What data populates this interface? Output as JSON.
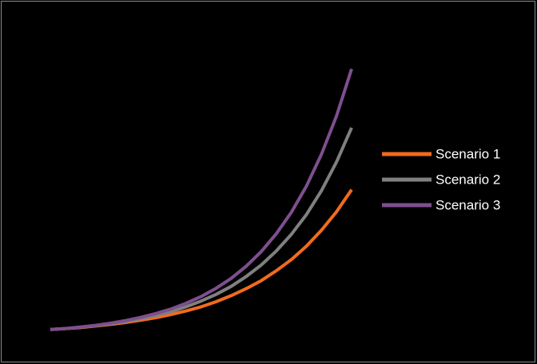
{
  "chart_data": {
    "type": "line",
    "x": [
      0,
      1,
      2,
      3,
      4,
      5,
      6,
      7,
      8,
      9,
      10,
      11,
      12,
      13,
      14,
      15,
      16,
      17,
      18,
      19,
      20
    ],
    "xlim": [
      0,
      20
    ],
    "ylim": [
      0,
      100
    ],
    "legend": "right",
    "series": [
      {
        "name": "Scenario 1",
        "color": "#f26b1d",
        "values": [
          1.8,
          2.1,
          2.4,
          2.9,
          3.4,
          4.0,
          4.7,
          5.5,
          6.5,
          7.6,
          8.9,
          10.5,
          12.4,
          14.6,
          17.1,
          20.2,
          23.7,
          27.9,
          32.9,
          38.7,
          45.6
        ]
      },
      {
        "name": "Scenario 2",
        "color": "#808080",
        "values": [
          1.8,
          2.1,
          2.5,
          3.0,
          3.6,
          4.3,
          5.2,
          6.2,
          7.4,
          8.9,
          10.7,
          12.8,
          15.3,
          18.4,
          22.0,
          26.4,
          31.6,
          37.8,
          45.3,
          54.3,
          65.0
        ]
      },
      {
        "name": "Scenario 3",
        "color": "#7e4f8f",
        "values": [
          1.8,
          2.1,
          2.6,
          3.1,
          3.8,
          4.6,
          5.6,
          6.8,
          8.2,
          10.0,
          12.1,
          14.7,
          17.8,
          21.6,
          26.2,
          31.8,
          38.5,
          46.7,
          56.7,
          68.7,
          83.4
        ]
      }
    ]
  }
}
